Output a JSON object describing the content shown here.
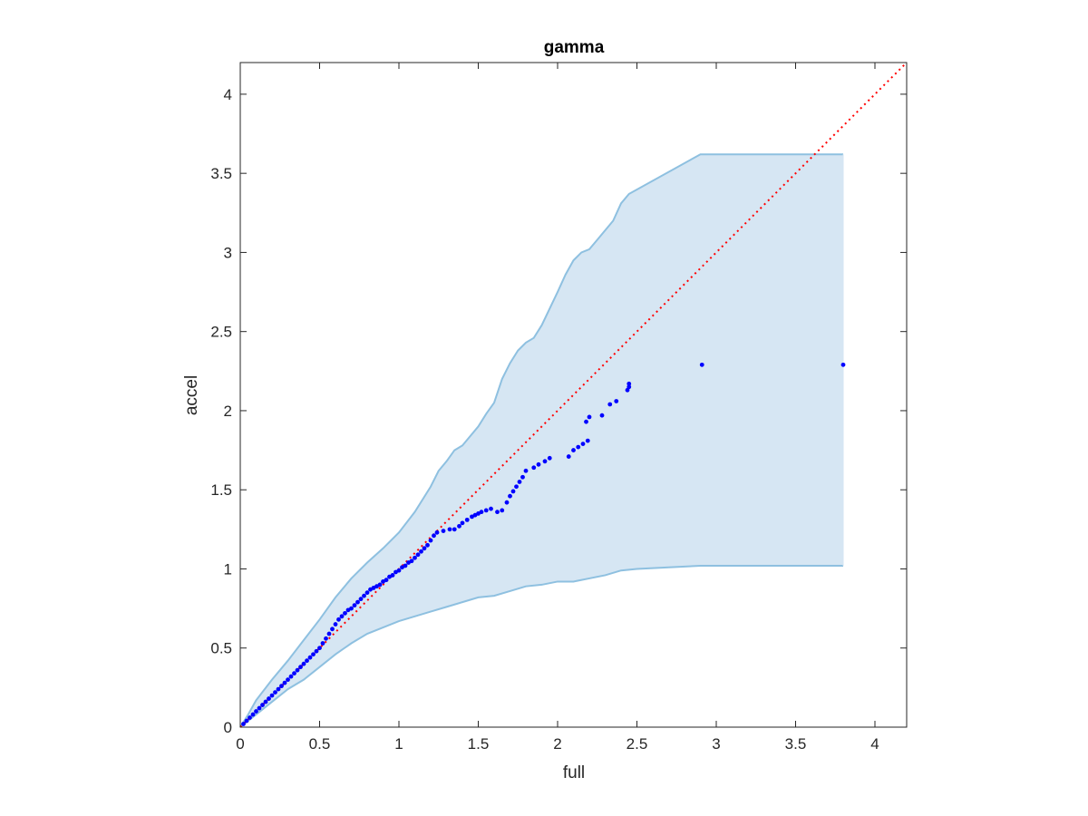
{
  "chart_data": {
    "type": "scatter",
    "title": "gamma",
    "xlabel": "full",
    "ylabel": "accel",
    "xlim": [
      0,
      4.2
    ],
    "ylim": [
      0,
      4.2
    ],
    "xticks": [
      0,
      0.5,
      1,
      1.5,
      2,
      2.5,
      3,
      3.5,
      4
    ],
    "yticks": [
      0,
      0.5,
      1,
      1.5,
      2,
      2.5,
      3,
      3.5,
      4
    ],
    "xtick_labels": [
      "0",
      "0.5",
      "1",
      "1.5",
      "2",
      "2.5",
      "3",
      "3.5",
      "4"
    ],
    "ytick_labels": [
      "0",
      "0.5",
      "1",
      "1.5",
      "2",
      "2.5",
      "3",
      "3.5",
      "4"
    ],
    "grid": false,
    "box": true,
    "reference_line": {
      "from": [
        0,
        0
      ],
      "to": [
        4.2,
        4.2
      ],
      "style": "dotted",
      "color": "#ff0000"
    },
    "band": {
      "color": "#d6e6f3",
      "edge_color": "#8ec0e0",
      "upper": [
        [
          0,
          0
        ],
        [
          0.05,
          0.08
        ],
        [
          0.1,
          0.17
        ],
        [
          0.2,
          0.3
        ],
        [
          0.3,
          0.42
        ],
        [
          0.4,
          0.55
        ],
        [
          0.5,
          0.68
        ],
        [
          0.6,
          0.82
        ],
        [
          0.7,
          0.94
        ],
        [
          0.8,
          1.04
        ],
        [
          0.9,
          1.13
        ],
        [
          1.0,
          1.23
        ],
        [
          1.1,
          1.36
        ],
        [
          1.2,
          1.52
        ],
        [
          1.25,
          1.62
        ],
        [
          1.3,
          1.68
        ],
        [
          1.35,
          1.75
        ],
        [
          1.4,
          1.78
        ],
        [
          1.5,
          1.9
        ],
        [
          1.55,
          1.98
        ],
        [
          1.6,
          2.05
        ],
        [
          1.65,
          2.2
        ],
        [
          1.7,
          2.3
        ],
        [
          1.75,
          2.38
        ],
        [
          1.8,
          2.43
        ],
        [
          1.85,
          2.46
        ],
        [
          1.9,
          2.54
        ],
        [
          2.0,
          2.75
        ],
        [
          2.05,
          2.86
        ],
        [
          2.1,
          2.95
        ],
        [
          2.15,
          3.0
        ],
        [
          2.2,
          3.02
        ],
        [
          2.25,
          3.08
        ],
        [
          2.3,
          3.14
        ],
        [
          2.35,
          3.2
        ],
        [
          2.4,
          3.31
        ],
        [
          2.45,
          3.37
        ],
        [
          2.9,
          3.62
        ],
        [
          3.8,
          3.62
        ]
      ],
      "lower": [
        [
          0,
          0
        ],
        [
          0.1,
          0.08
        ],
        [
          0.2,
          0.16
        ],
        [
          0.3,
          0.24
        ],
        [
          0.4,
          0.3
        ],
        [
          0.5,
          0.38
        ],
        [
          0.6,
          0.46
        ],
        [
          0.7,
          0.53
        ],
        [
          0.8,
          0.59
        ],
        [
          0.9,
          0.63
        ],
        [
          1.0,
          0.67
        ],
        [
          1.1,
          0.7
        ],
        [
          1.2,
          0.73
        ],
        [
          1.3,
          0.76
        ],
        [
          1.4,
          0.79
        ],
        [
          1.5,
          0.82
        ],
        [
          1.6,
          0.83
        ],
        [
          1.7,
          0.86
        ],
        [
          1.8,
          0.89
        ],
        [
          1.9,
          0.9
        ],
        [
          2.0,
          0.92
        ],
        [
          2.1,
          0.92
        ],
        [
          2.2,
          0.94
        ],
        [
          2.3,
          0.96
        ],
        [
          2.4,
          0.99
        ],
        [
          2.5,
          1.0
        ],
        [
          2.7,
          1.01
        ],
        [
          2.9,
          1.02
        ],
        [
          3.8,
          1.02
        ]
      ]
    },
    "series": [
      {
        "color": "#0000ff",
        "points": [
          [
            0.02,
            0.02
          ],
          [
            0.04,
            0.04
          ],
          [
            0.06,
            0.06
          ],
          [
            0.08,
            0.08
          ],
          [
            0.1,
            0.1
          ],
          [
            0.12,
            0.12
          ],
          [
            0.14,
            0.14
          ],
          [
            0.16,
            0.16
          ],
          [
            0.18,
            0.18
          ],
          [
            0.2,
            0.2
          ],
          [
            0.22,
            0.22
          ],
          [
            0.24,
            0.24
          ],
          [
            0.26,
            0.26
          ],
          [
            0.28,
            0.28
          ],
          [
            0.3,
            0.3
          ],
          [
            0.32,
            0.32
          ],
          [
            0.34,
            0.34
          ],
          [
            0.36,
            0.36
          ],
          [
            0.38,
            0.38
          ],
          [
            0.4,
            0.4
          ],
          [
            0.42,
            0.42
          ],
          [
            0.44,
            0.44
          ],
          [
            0.46,
            0.46
          ],
          [
            0.48,
            0.48
          ],
          [
            0.5,
            0.5
          ],
          [
            0.52,
            0.53
          ],
          [
            0.54,
            0.56
          ],
          [
            0.56,
            0.59
          ],
          [
            0.58,
            0.62
          ],
          [
            0.6,
            0.65
          ],
          [
            0.62,
            0.68
          ],
          [
            0.64,
            0.7
          ],
          [
            0.66,
            0.72
          ],
          [
            0.68,
            0.74
          ],
          [
            0.7,
            0.75
          ],
          [
            0.72,
            0.77
          ],
          [
            0.74,
            0.79
          ],
          [
            0.76,
            0.81
          ],
          [
            0.78,
            0.83
          ],
          [
            0.8,
            0.85
          ],
          [
            0.82,
            0.87
          ],
          [
            0.84,
            0.88
          ],
          [
            0.86,
            0.89
          ],
          [
            0.88,
            0.9
          ],
          [
            0.9,
            0.92
          ],
          [
            0.92,
            0.93
          ],
          [
            0.94,
            0.95
          ],
          [
            0.96,
            0.96
          ],
          [
            0.98,
            0.98
          ],
          [
            1.0,
            0.99
          ],
          [
            1.02,
            1.01
          ],
          [
            1.04,
            1.02
          ],
          [
            1.06,
            1.04
          ],
          [
            1.08,
            1.05
          ],
          [
            1.1,
            1.07
          ],
          [
            1.12,
            1.09
          ],
          [
            1.14,
            1.11
          ],
          [
            1.16,
            1.13
          ],
          [
            1.18,
            1.15
          ],
          [
            1.2,
            1.18
          ],
          [
            1.22,
            1.21
          ],
          [
            1.24,
            1.23
          ],
          [
            1.28,
            1.24
          ],
          [
            1.32,
            1.25
          ],
          [
            1.35,
            1.25
          ],
          [
            1.38,
            1.27
          ],
          [
            1.4,
            1.29
          ],
          [
            1.43,
            1.31
          ],
          [
            1.46,
            1.33
          ],
          [
            1.48,
            1.34
          ],
          [
            1.5,
            1.35
          ],
          [
            1.52,
            1.36
          ],
          [
            1.55,
            1.37
          ],
          [
            1.58,
            1.38
          ],
          [
            1.62,
            1.36
          ],
          [
            1.65,
            1.37
          ],
          [
            1.68,
            1.42
          ],
          [
            1.7,
            1.46
          ],
          [
            1.72,
            1.49
          ],
          [
            1.74,
            1.52
          ],
          [
            1.76,
            1.55
          ],
          [
            1.78,
            1.58
          ],
          [
            1.8,
            1.62
          ],
          [
            1.85,
            1.64
          ],
          [
            1.88,
            1.66
          ],
          [
            1.92,
            1.68
          ],
          [
            1.95,
            1.7
          ],
          [
            2.07,
            1.71
          ],
          [
            2.1,
            1.75
          ],
          [
            2.13,
            1.77
          ],
          [
            2.16,
            1.79
          ],
          [
            2.19,
            1.81
          ],
          [
            2.18,
            1.93
          ],
          [
            2.2,
            1.96
          ],
          [
            2.28,
            1.97
          ],
          [
            2.33,
            2.04
          ],
          [
            2.37,
            2.06
          ],
          [
            2.44,
            2.13
          ],
          [
            2.45,
            2.15
          ],
          [
            2.45,
            2.17
          ],
          [
            2.91,
            2.29
          ],
          [
            3.8,
            2.29
          ]
        ]
      }
    ]
  }
}
